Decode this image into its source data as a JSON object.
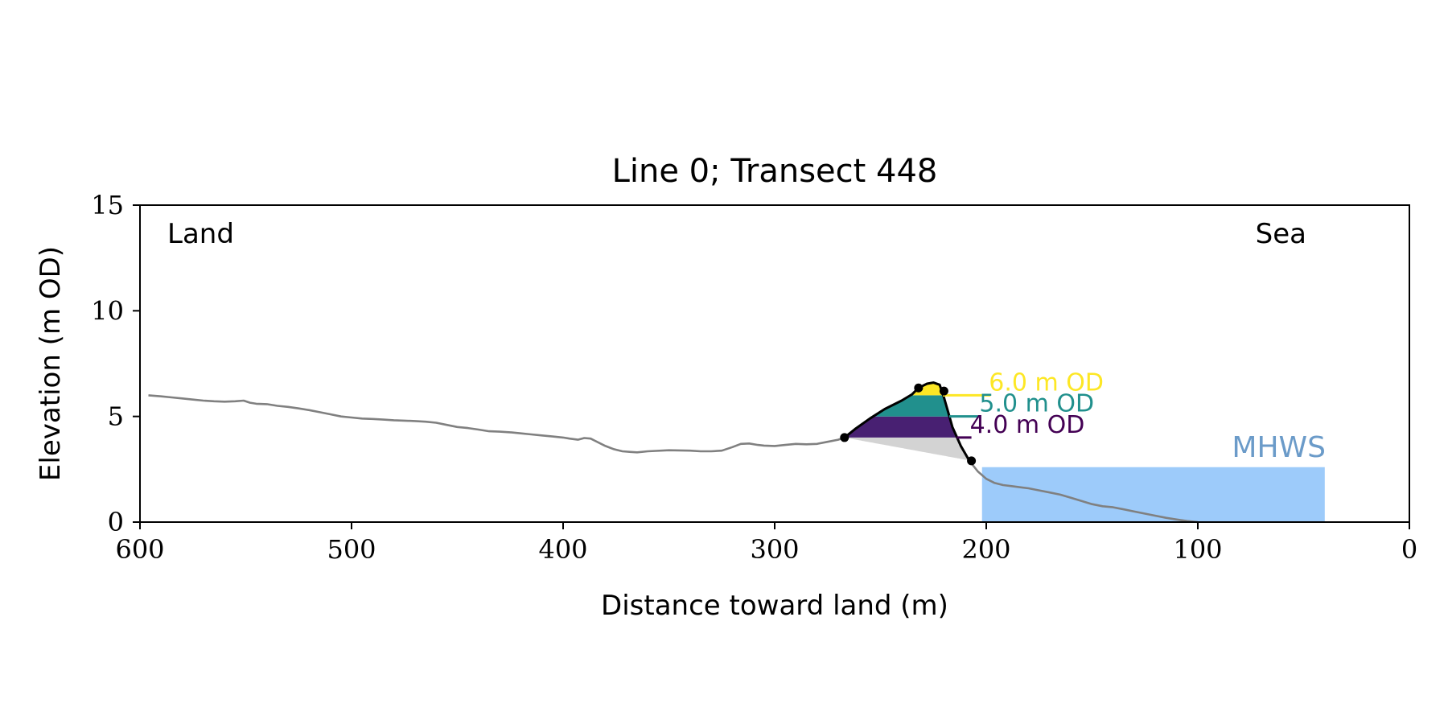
{
  "chart_data": {
    "type": "line",
    "title": "Line 0; Transect 448",
    "xlabel": "Distance toward land (m)",
    "ylabel": "Elevation (m OD)",
    "xlim": [
      600,
      0
    ],
    "ylim": [
      0,
      15
    ],
    "xticks": [
      600,
      500,
      400,
      300,
      200,
      100,
      0
    ],
    "yticks": [
      0,
      5,
      10,
      15
    ],
    "grid": false,
    "annotations": {
      "land_label": "Land",
      "sea_label": "Sea",
      "mhws_label": "MHWS"
    },
    "mhws": {
      "elevation": 2.6,
      "x_start": 202,
      "x_end": 40,
      "color": "#9dcbfa",
      "label_color": "#6b9bc9"
    },
    "profile": {
      "color": "#808080",
      "x": [
        596,
        590,
        585,
        580,
        575,
        570,
        565,
        560,
        555,
        551,
        548,
        545,
        540,
        535,
        530,
        525,
        520,
        515,
        510,
        505,
        500,
        495,
        490,
        485,
        480,
        475,
        470,
        465,
        460,
        455,
        450,
        445,
        440,
        435,
        430,
        425,
        420,
        415,
        410,
        405,
        400,
        397,
        393,
        390,
        387,
        385,
        380,
        376,
        372,
        368,
        365,
        360,
        350,
        340,
        335,
        330,
        325,
        320,
        316,
        312,
        308,
        305,
        300,
        295,
        290,
        285,
        280,
        275,
        270,
        267,
        262,
        255,
        248,
        240,
        235,
        232,
        228,
        225,
        222,
        220,
        218,
        216,
        212,
        208,
        204,
        200,
        196,
        192,
        188,
        180,
        175,
        170,
        165,
        160,
        155,
        150,
        145,
        140,
        135,
        130,
        125,
        120,
        115,
        110,
        105,
        100
      ],
      "y": [
        6.0,
        5.95,
        5.9,
        5.85,
        5.8,
        5.75,
        5.72,
        5.7,
        5.72,
        5.75,
        5.65,
        5.6,
        5.58,
        5.5,
        5.45,
        5.38,
        5.3,
        5.2,
        5.1,
        5.0,
        4.95,
        4.9,
        4.88,
        4.85,
        4.82,
        4.8,
        4.78,
        4.75,
        4.7,
        4.6,
        4.5,
        4.45,
        4.38,
        4.3,
        4.28,
        4.25,
        4.2,
        4.15,
        4.1,
        4.05,
        4.0,
        3.95,
        3.9,
        3.98,
        3.95,
        3.85,
        3.6,
        3.45,
        3.35,
        3.32,
        3.3,
        3.35,
        3.4,
        3.38,
        3.35,
        3.35,
        3.38,
        3.55,
        3.7,
        3.72,
        3.65,
        3.62,
        3.6,
        3.65,
        3.7,
        3.68,
        3.7,
        3.8,
        3.9,
        4.0,
        4.4,
        4.9,
        5.35,
        5.75,
        6.05,
        6.35,
        6.55,
        6.6,
        6.5,
        5.9,
        5.2,
        4.5,
        3.6,
        2.9,
        2.4,
        2.05,
        1.85,
        1.75,
        1.7,
        1.6,
        1.5,
        1.4,
        1.3,
        1.15,
        1.0,
        0.85,
        0.75,
        0.7,
        0.6,
        0.5,
        0.4,
        0.3,
        0.2,
        0.12,
        0.05,
        0.0
      ]
    },
    "dune": {
      "outline_color": "#000000",
      "toe": {
        "x": 267,
        "y": 4.0
      },
      "crest_points": [
        {
          "x": 232,
          "y": 6.35
        },
        {
          "x": 220,
          "y": 6.2
        }
      ],
      "seaward_toe": {
        "x": 207,
        "y": 2.9
      },
      "base_fill": "#d3d3d3",
      "levels": [
        {
          "elevation": 4.0,
          "label": "4.0 m OD",
          "color": "#440154",
          "fill": "#482072"
        },
        {
          "elevation": 5.0,
          "label": "5.0 m OD",
          "color": "#21908d",
          "fill": "#21908d"
        },
        {
          "elevation": 6.0,
          "label": "6.0 m OD",
          "color": "#fde725",
          "fill": "#fde725"
        }
      ]
    }
  }
}
